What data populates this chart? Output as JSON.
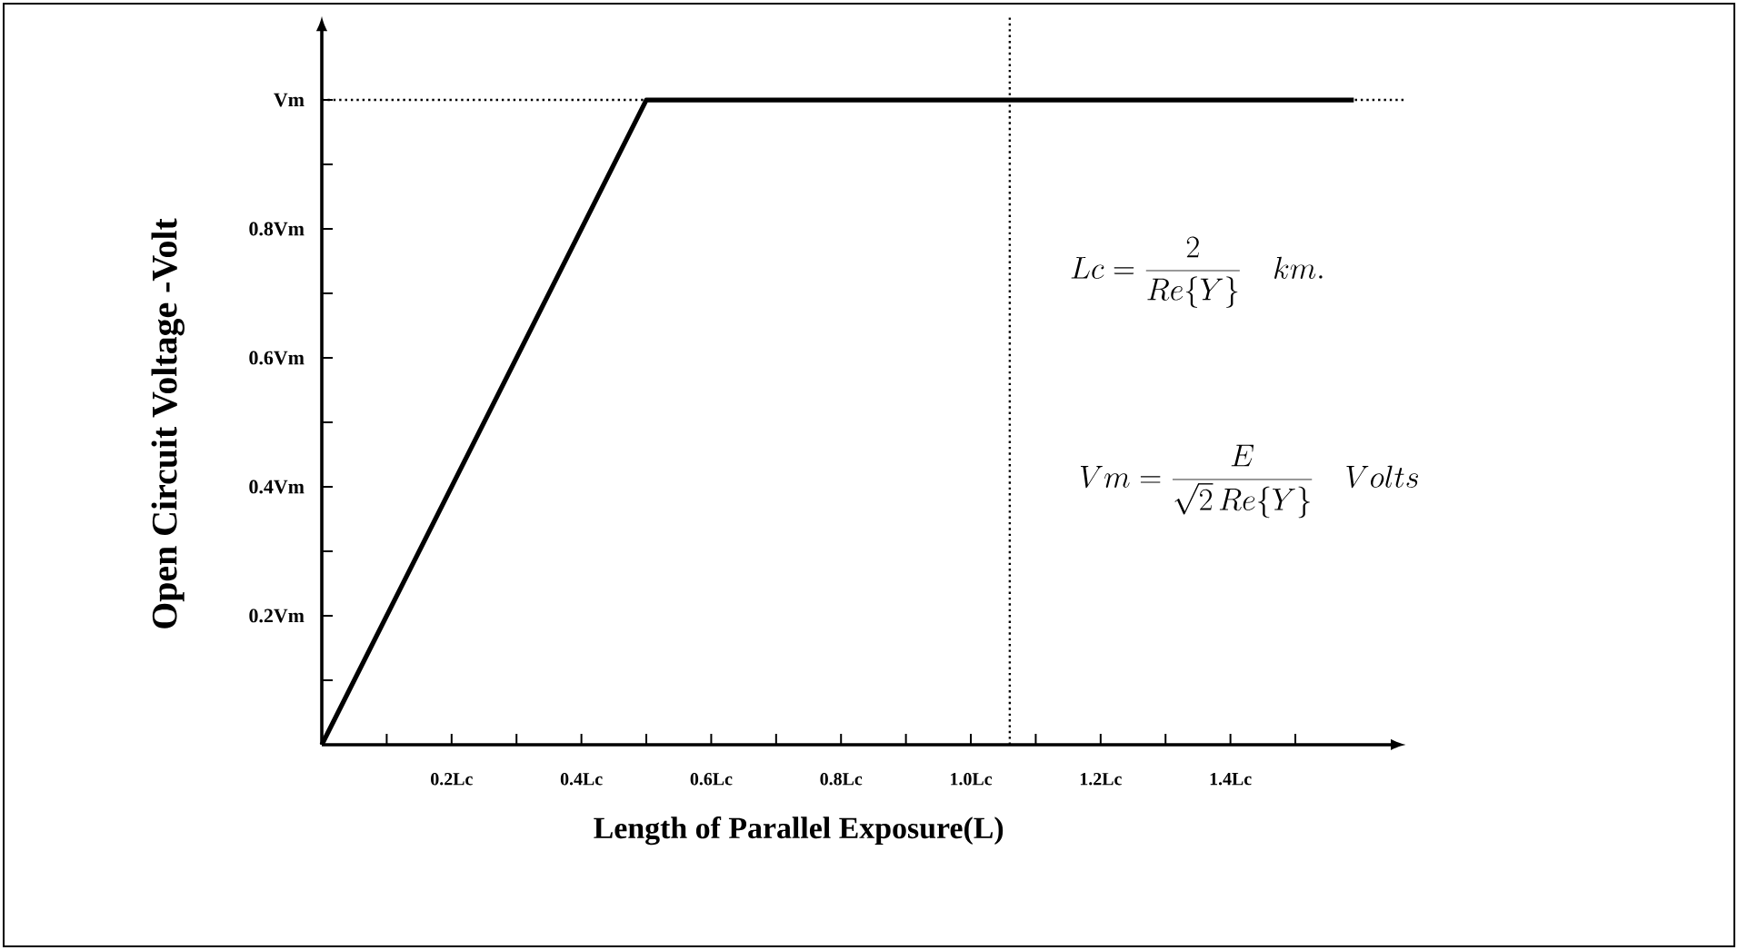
{
  "chart_data": {
    "type": "line",
    "xlabel": "Length of Parallel Exposure(L)",
    "ylabel": "Open Circuit Voltage -Volt",
    "x": [
      0,
      0.5,
      1.59
    ],
    "series": [
      {
        "color": "#000000",
        "values": [
          0,
          1,
          1
        ]
      }
    ],
    "xlim": [
      0,
      1.67
    ],
    "ylim": [
      0,
      1.13
    ],
    "xticks": [
      {
        "value": 0.1,
        "label": null
      },
      {
        "value": 0.2,
        "label": "0.2Lc"
      },
      {
        "value": 0.3,
        "label": null
      },
      {
        "value": 0.4,
        "label": "0.4Lc"
      },
      {
        "value": 0.5,
        "label": null
      },
      {
        "value": 0.6,
        "label": "0.6Lc"
      },
      {
        "value": 0.7,
        "label": null
      },
      {
        "value": 0.8,
        "label": "0.8Lc"
      },
      {
        "value": 0.9,
        "label": null
      },
      {
        "value": 1.0,
        "label": "1.0Lc"
      },
      {
        "value": 1.1,
        "label": null
      },
      {
        "value": 1.2,
        "label": "1.2Lc"
      },
      {
        "value": 1.3,
        "label": null
      },
      {
        "value": 1.4,
        "label": "1.4Lc"
      },
      {
        "value": 1.5,
        "label": null
      }
    ],
    "yticks": [
      {
        "value": 0.1,
        "label": null
      },
      {
        "value": 0.2,
        "label": "0.2Vm"
      },
      {
        "value": 0.3,
        "label": null
      },
      {
        "value": 0.4,
        "label": "0.4Vm"
      },
      {
        "value": 0.5,
        "label": null
      },
      {
        "value": 0.6,
        "label": "0.6Vm"
      },
      {
        "value": 0.7,
        "label": null
      },
      {
        "value": 0.8,
        "label": "0.8Vm"
      },
      {
        "value": 0.9,
        "label": null
      },
      {
        "value": 1.0,
        "label": "Vm"
      }
    ],
    "ref_lines": [
      {
        "axis": "y",
        "value": 1,
        "line_style": "dotted"
      },
      {
        "axis": "x",
        "value": 1.06,
        "line_style": "dotted"
      }
    ],
    "annotations": [
      "Lc = \\frac{2}{Re\\{Y\\}}\\quad km.",
      "Vm = \\frac{E}{\\sqrt{2}\\,Re\\{Y\\}}\\quad Volts"
    ],
    "grid": false,
    "legend": false,
    "marker": "none",
    "line_style": "solid"
  }
}
